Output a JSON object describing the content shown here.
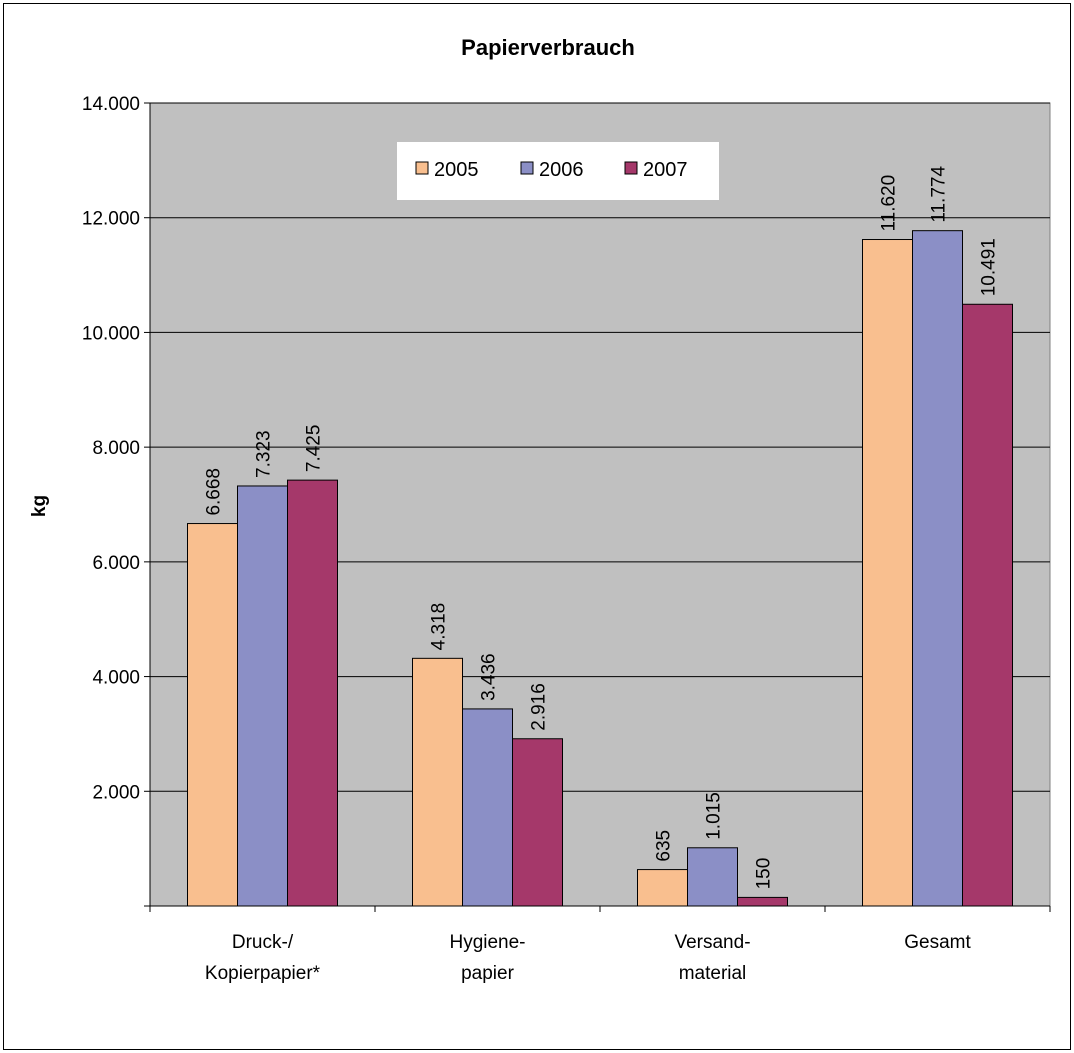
{
  "chart_data": {
    "type": "bar",
    "title": "Papierverbrauch",
    "ylabel": "kg",
    "xlabel": "",
    "ylim": [
      0,
      14000
    ],
    "yticks": [
      0,
      2000,
      4000,
      6000,
      8000,
      10000,
      12000,
      14000
    ],
    "ytick_labels": [
      "",
      "2.000",
      "4.000",
      "6.000",
      "8.000",
      "10.000",
      "12.000",
      "14.000"
    ],
    "grid": true,
    "legend_placement": "top-center",
    "categories": [
      [
        "Druck-/",
        "Kopierpapier*"
      ],
      [
        "Hygiene-",
        "papier"
      ],
      [
        "Versand-",
        "material"
      ],
      [
        "Gesamt"
      ]
    ],
    "series": [
      {
        "name": "2005",
        "color": "#F9BF8F",
        "values": [
          6668,
          4318,
          635,
          11620
        ],
        "labels": [
          "6.668",
          "4.318",
          "635",
          "11.620"
        ]
      },
      {
        "name": "2006",
        "color": "#8B8FC6",
        "values": [
          7323,
          3436,
          1015,
          11774
        ],
        "labels": [
          "7.323",
          "3.436",
          "1.015",
          "11.774"
        ]
      },
      {
        "name": "2007",
        "color": "#A5386A",
        "values": [
          7425,
          2916,
          150,
          10491
        ],
        "labels": [
          "7.425",
          "2.916",
          "150",
          "10.491"
        ]
      }
    ],
    "plot_background": "#C0C0C0"
  }
}
